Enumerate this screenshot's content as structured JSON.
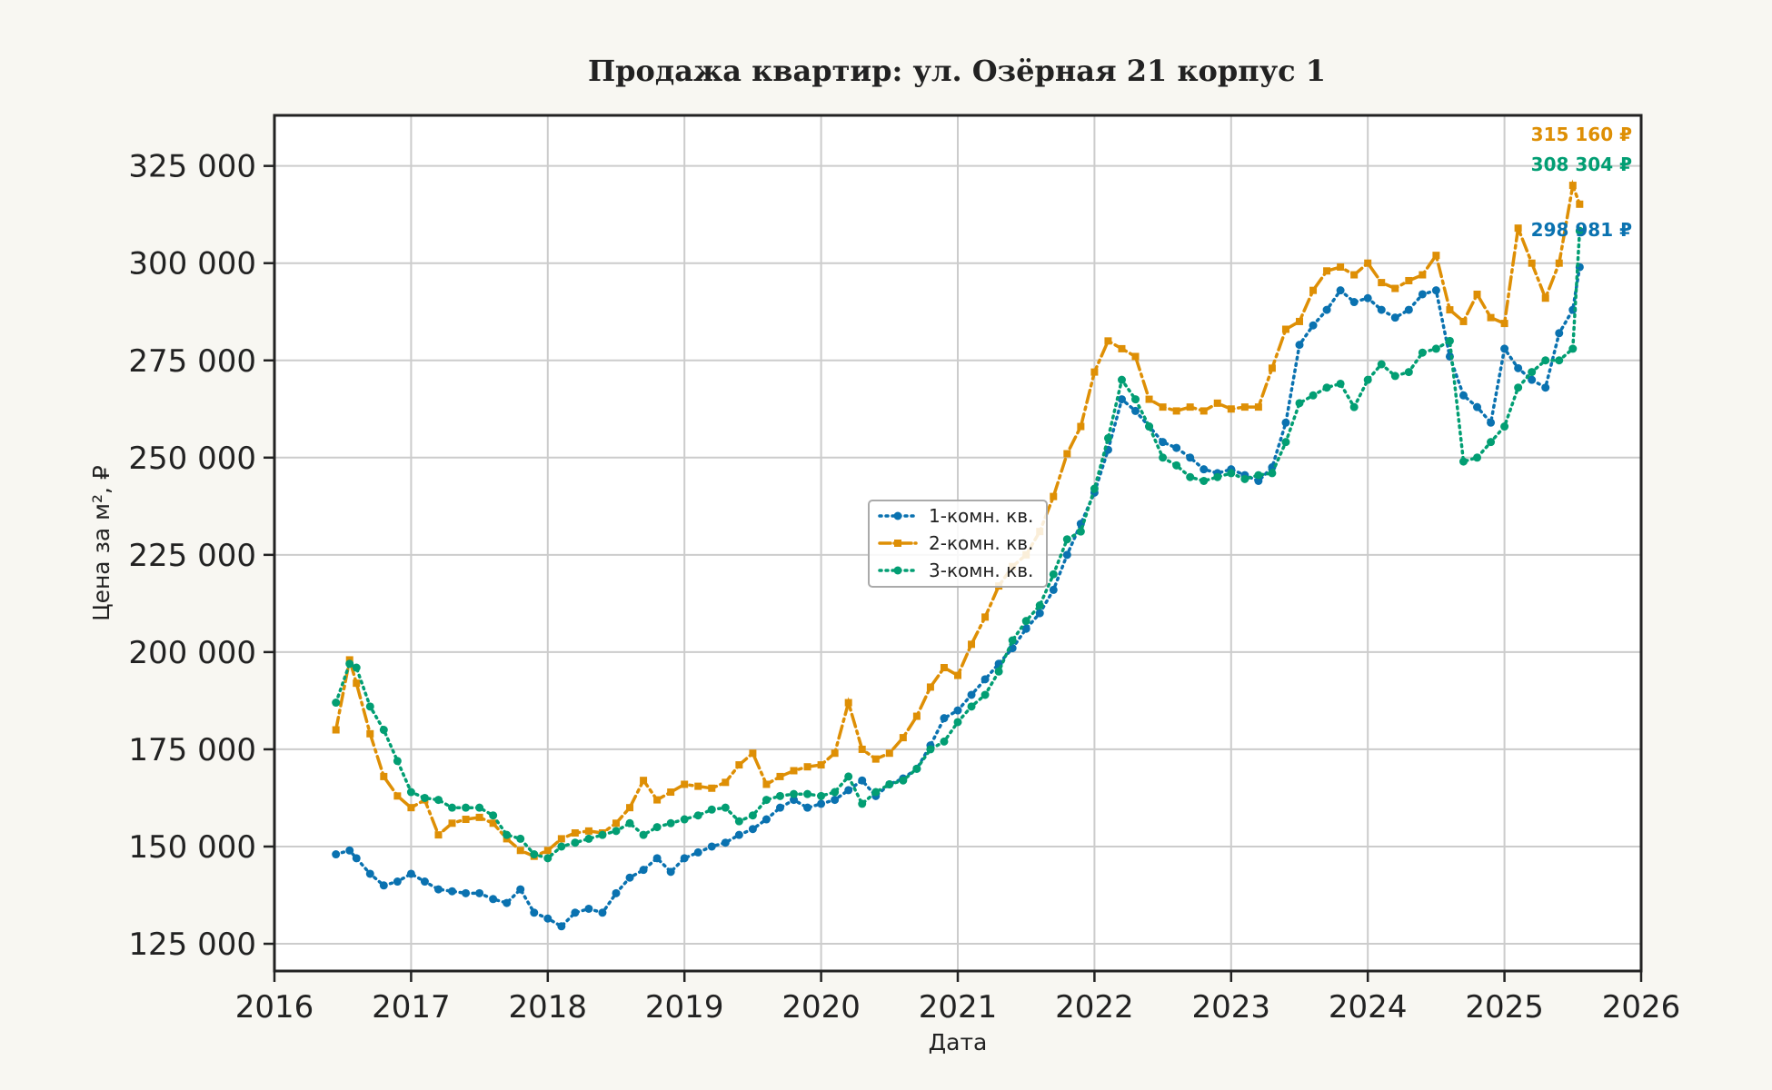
{
  "chart_data": {
    "type": "line",
    "title": "Продажа квартир: ул. Озёрная 21 корпус 1",
    "xlabel": "Дата",
    "ylabel": "Цена за м², ₽",
    "xlim": [
      2016,
      2026
    ],
    "ylim": [
      118000,
      338000
    ],
    "x_ticks": [
      "2016",
      "2017",
      "2018",
      "2019",
      "2020",
      "2021",
      "2022",
      "2023",
      "2024",
      "2025",
      "2026"
    ],
    "y_ticks": [
      {
        "value": 125000,
        "label": "125 000"
      },
      {
        "value": 150000,
        "label": "150 000"
      },
      {
        "value": 175000,
        "label": "175 000"
      },
      {
        "value": 200000,
        "label": "200 000"
      },
      {
        "value": 225000,
        "label": "225 000"
      },
      {
        "value": 250000,
        "label": "250 000"
      },
      {
        "value": 275000,
        "label": "275 000"
      },
      {
        "value": 300000,
        "label": "300 000"
      },
      {
        "value": 325000,
        "label": "325 000"
      }
    ],
    "grid": true,
    "legend_position": "center",
    "x": [
      2016.45,
      2016.55,
      2016.6,
      2016.7,
      2016.8,
      2016.9,
      2017.0,
      2017.1,
      2017.2,
      2017.3,
      2017.4,
      2017.5,
      2017.6,
      2017.7,
      2017.8,
      2017.9,
      2018.0,
      2018.1,
      2018.2,
      2018.3,
      2018.4,
      2018.5,
      2018.6,
      2018.7,
      2018.8,
      2018.9,
      2019.0,
      2019.1,
      2019.2,
      2019.3,
      2019.4,
      2019.5,
      2019.6,
      2019.7,
      2019.8,
      2019.9,
      2020.0,
      2020.1,
      2020.2,
      2020.3,
      2020.4,
      2020.5,
      2020.6,
      2020.7,
      2020.8,
      2020.9,
      2021.0,
      2021.1,
      2021.2,
      2021.3,
      2021.4,
      2021.5,
      2021.6,
      2021.7,
      2021.8,
      2021.9,
      2022.0,
      2022.1,
      2022.2,
      2022.3,
      2022.4,
      2022.5,
      2022.6,
      2022.7,
      2022.8,
      2022.9,
      2023.0,
      2023.1,
      2023.2,
      2023.3,
      2023.4,
      2023.5,
      2023.6,
      2023.7,
      2023.8,
      2023.9,
      2024.0,
      2024.1,
      2024.2,
      2024.3,
      2024.4,
      2024.5,
      2024.6,
      2024.7,
      2024.8,
      2024.9,
      2025.0,
      2025.1,
      2025.2,
      2025.3,
      2025.4,
      2025.5,
      2025.55
    ],
    "series": [
      {
        "name": "1-комн. кв.",
        "color": "#0a72b0",
        "style": "dotted-circle",
        "last_label": "298 981 ₽",
        "values": [
          148000,
          149000,
          147000,
          143000,
          140000,
          141000,
          143000,
          141000,
          139000,
          138500,
          138000,
          138000,
          136500,
          135500,
          139000,
          133000,
          131500,
          129500,
          133000,
          134000,
          133000,
          138000,
          142000,
          144000,
          147000,
          143500,
          147000,
          148500,
          150000,
          151000,
          153000,
          154500,
          157000,
          160000,
          162000,
          160000,
          161000,
          162000,
          164500,
          167000,
          163000,
          166000,
          167500,
          170000,
          176000,
          183000,
          185000,
          189000,
          193000,
          197000,
          201000,
          206000,
          210000,
          216000,
          225000,
          233000,
          241000,
          252000,
          265000,
          262000,
          258000,
          254000,
          252500,
          250000,
          247000,
          246000,
          247000,
          245500,
          244000,
          247500,
          259000,
          279000,
          284000,
          288000,
          293000,
          290000,
          291000,
          288000,
          286000,
          288000,
          292000,
          293000,
          276000,
          266000,
          263000,
          259000,
          278000,
          273000,
          270000,
          268000,
          282000,
          288000,
          298981
        ]
      },
      {
        "name": "2-комн. кв.",
        "color": "#de8f05",
        "style": "dashdot-square",
        "last_label": "315 160 ₽",
        "values": [
          180000,
          198000,
          192000,
          179000,
          168000,
          163000,
          160000,
          162000,
          153000,
          156000,
          157000,
          157500,
          156000,
          152000,
          149000,
          147500,
          149000,
          152000,
          153500,
          154000,
          153500,
          156000,
          160000,
          167000,
          162000,
          164000,
          166000,
          165500,
          165000,
          166500,
          171000,
          174000,
          166000,
          168000,
          169500,
          170500,
          171000,
          174000,
          187000,
          175000,
          172500,
          174000,
          178000,
          183500,
          191000,
          196000,
          194000,
          202000,
          209000,
          217000,
          222000,
          225000,
          231000,
          240000,
          251000,
          258000,
          272000,
          280000,
          278000,
          276000,
          265000,
          263000,
          262000,
          263000,
          262000,
          264000,
          262500,
          263000,
          263000,
          273000,
          283000,
          285000,
          293000,
          298000,
          299000,
          297000,
          300000,
          295000,
          293500,
          295500,
          297000,
          302000,
          288000,
          285000,
          292000,
          286000,
          284500,
          309000,
          300000,
          291000,
          300000,
          320000,
          315160
        ]
      },
      {
        "name": "3-комн. кв.",
        "color": "#029e73",
        "style": "dotted-circle",
        "last_label": "308 304 ₽",
        "values": [
          187000,
          197000,
          196000,
          186000,
          180000,
          172000,
          164000,
          162500,
          162000,
          160000,
          160000,
          160000,
          158000,
          153000,
          152000,
          148000,
          147000,
          150000,
          151000,
          152000,
          153000,
          154000,
          156000,
          153000,
          155000,
          156000,
          157000,
          158000,
          159500,
          160000,
          156500,
          158000,
          162000,
          163000,
          163500,
          163500,
          163000,
          164000,
          168000,
          161000,
          164000,
          166000,
          167000,
          170000,
          175000,
          177000,
          182000,
          186000,
          189000,
          195000,
          203000,
          208000,
          212000,
          220000,
          229000,
          231000,
          242000,
          255000,
          270000,
          265000,
          258000,
          250000,
          248000,
          245000,
          244000,
          245000,
          246000,
          244500,
          245500,
          246000,
          254000,
          264000,
          266000,
          268000,
          269000,
          263000,
          270000,
          274000,
          271000,
          272000,
          277000,
          278000,
          280000,
          249000,
          250000,
          254000,
          258000,
          268000,
          272000,
          275000,
          275000,
          278000,
          308304
        ]
      }
    ]
  }
}
